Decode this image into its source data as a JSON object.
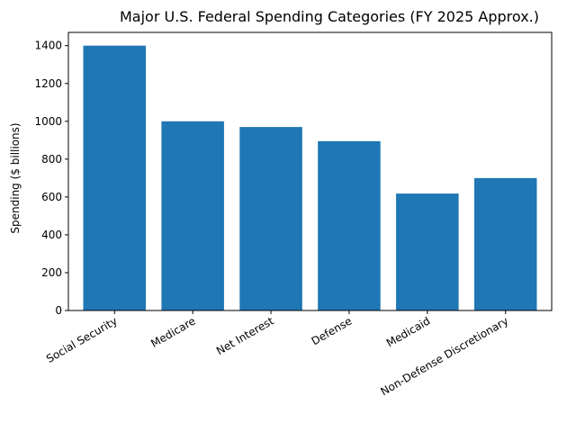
{
  "chart_data": {
    "type": "bar",
    "title": "Major U.S. Federal Spending Categories (FY 2025 Approx.)",
    "xlabel": "",
    "ylabel": "Spending ($ billions)",
    "categories": [
      "Social Security",
      "Medicare",
      "Net Interest",
      "Defense",
      "Medicaid",
      "Non-Defense Discretionary"
    ],
    "values": [
      1400,
      1000,
      970,
      895,
      618,
      700
    ],
    "ylim": [
      0,
      1470
    ],
    "yticks": [
      0,
      200,
      400,
      600,
      800,
      1000,
      1200,
      1400
    ],
    "bar_color": "#1f77b4",
    "grid": false,
    "legend": "none"
  }
}
